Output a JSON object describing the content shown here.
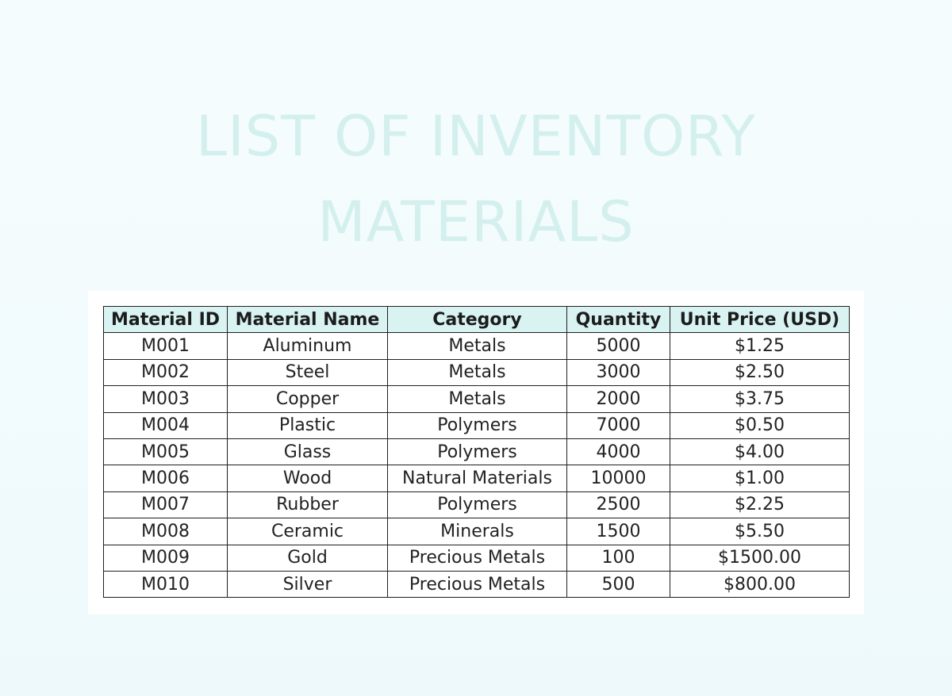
{
  "document": {
    "title_line_1": "LIST OF INVENTORY",
    "title_line_2": "MATERIALS",
    "colors": {
      "title": "#d4f0ee",
      "header_bg": "#d8f3f2",
      "background": "#f3fbfd",
      "card": "#ffffff",
      "border": "#1f1f1f"
    }
  },
  "table": {
    "headers": [
      "Material ID",
      "Material Name",
      "Category",
      "Quantity",
      "Unit Price (USD)"
    ],
    "rows": [
      [
        "M001",
        "Aluminum",
        "Metals",
        "5000",
        "$1.25"
      ],
      [
        "M002",
        "Steel",
        "Metals",
        "3000",
        "$2.50"
      ],
      [
        "M003",
        "Copper",
        "Metals",
        "2000",
        "$3.75"
      ],
      [
        "M004",
        "Plastic",
        "Polymers",
        "7000",
        "$0.50"
      ],
      [
        "M005",
        "Glass",
        "Polymers",
        "4000",
        "$4.00"
      ],
      [
        "M006",
        "Wood",
        "Natural Materials",
        "10000",
        "$1.00"
      ],
      [
        "M007",
        "Rubber",
        "Polymers",
        "2500",
        "$2.25"
      ],
      [
        "M008",
        "Ceramic",
        "Minerals",
        "1500",
        "$5.50"
      ],
      [
        "M009",
        "Gold",
        "Precious Metals",
        "100",
        "$1500.00"
      ],
      [
        "M010",
        "Silver",
        "Precious Metals",
        "500",
        "$800.00"
      ]
    ]
  }
}
